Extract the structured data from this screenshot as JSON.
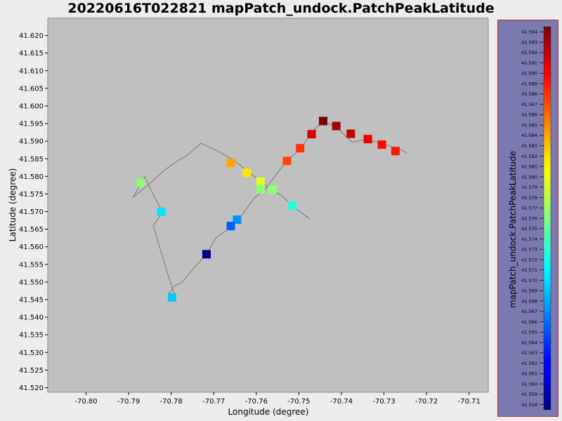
{
  "chart_data": {
    "type": "scatter",
    "title": "20220616T022821 mapPatch_undock.PatchPeakLatitude",
    "xlabel": "Longitude (degree)",
    "ylabel": "Latitude (degree)",
    "colorbar_label": "mapPatch_undock.PatchPeakLatitude",
    "colormap": "jet",
    "xlim": [
      -70.809,
      -70.7055
    ],
    "ylim": [
      41.5187,
      41.6249
    ],
    "x_ticks": [
      -70.8,
      -70.79,
      -70.78,
      -70.77,
      -70.76,
      -70.75,
      -70.74,
      -70.73,
      -70.72,
      -70.71
    ],
    "x_tick_labels": [
      "-70.80",
      "-70.79",
      "-70.78",
      "-70.77",
      "-70.76",
      "-70.75",
      "-70.74",
      "-70.73",
      "-70.72",
      "-70.71"
    ],
    "y_ticks": [
      41.52,
      41.525,
      41.53,
      41.535,
      41.54,
      41.545,
      41.55,
      41.555,
      41.56,
      41.565,
      41.57,
      41.575,
      41.58,
      41.585,
      41.59,
      41.595,
      41.6,
      41.605,
      41.61,
      41.615,
      41.62
    ],
    "y_tick_labels": [
      "41.520",
      "41.525",
      "41.530",
      "41.535",
      "41.540",
      "41.545",
      "41.550",
      "41.555",
      "41.560",
      "41.565",
      "41.570",
      "41.575",
      "41.580",
      "41.585",
      "41.590",
      "41.595",
      "41.600",
      "41.605",
      "41.610",
      "41.615",
      "41.620"
    ],
    "colorbar_ticks": [
      "41.594",
      "41.593",
      "41.592",
      "41.591",
      "41.590",
      "41.589",
      "41.588",
      "41.587",
      "41.586",
      "41.585",
      "41.584",
      "41.583",
      "41.582",
      "41.581",
      "41.580",
      "41.579",
      "41.578",
      "41.577",
      "41.576",
      "41.575",
      "41.574",
      "41.573",
      "41.572",
      "41.571",
      "41.570",
      "41.569",
      "41.568",
      "41.567",
      "41.566",
      "41.565",
      "41.564",
      "41.563",
      "41.562",
      "41.561",
      "41.560",
      "41.559",
      "41.558"
    ],
    "colorbar_range": [
      41.5575,
      41.5945
    ],
    "grid": false,
    "track": [
      [
        -70.7247,
        41.5866
      ],
      [
        -70.7255,
        41.5872
      ],
      [
        -70.729,
        41.5888
      ],
      [
        -70.734,
        41.5905
      ],
      [
        -70.7375,
        41.5897
      ],
      [
        -70.741,
        41.5938
      ],
      [
        -70.7444,
        41.5958
      ],
      [
        -70.747,
        41.5925
      ],
      [
        -70.7495,
        41.5879
      ],
      [
        -70.7528,
        41.5844
      ],
      [
        -70.7553,
        41.5805
      ],
      [
        -70.7578,
        41.5765
      ],
      [
        -70.7585,
        41.5758
      ],
      [
        -70.7605,
        41.5738
      ],
      [
        -70.7635,
        41.5688
      ],
      [
        -70.766,
        41.5655
      ],
      [
        -70.7695,
        41.5626
      ],
      [
        -70.7717,
        41.5579
      ],
      [
        -70.7745,
        41.5542
      ],
      [
        -70.7775,
        41.5498
      ],
      [
        -70.7792,
        41.5489
      ],
      [
        -70.7805,
        41.5468
      ],
      [
        -70.7792,
        41.5463
      ],
      [
        -70.7812,
        41.5538
      ],
      [
        -70.7842,
        41.566
      ],
      [
        -70.782,
        41.5698
      ],
      [
        -70.7845,
        41.5755
      ],
      [
        -70.7862,
        41.5799
      ],
      [
        -70.787,
        41.5782
      ],
      [
        -70.789,
        41.574
      ],
      [
        -70.785,
        41.578
      ],
      [
        -70.7815,
        41.5818
      ],
      [
        -70.779,
        41.584
      ],
      [
        -70.776,
        41.5862
      ],
      [
        -70.773,
        41.5894
      ],
      [
        -70.769,
        41.5872
      ],
      [
        -70.765,
        41.5844
      ],
      [
        -70.762,
        41.5813
      ],
      [
        -70.759,
        41.5787
      ],
      [
        -70.7565,
        41.5762
      ],
      [
        -70.754,
        41.5745
      ],
      [
        -70.7515,
        41.5716
      ],
      [
        -70.749,
        41.5693
      ],
      [
        -70.7475,
        41.568
      ],
      [
        -70.7482,
        41.5685
      ]
    ],
    "points": [
      {
        "x": -70.7443,
        "y": 41.5957,
        "value": 41.5945
      },
      {
        "x": -70.7412,
        "y": 41.5943,
        "value": 41.593
      },
      {
        "x": -70.7378,
        "y": 41.5921,
        "value": 41.592
      },
      {
        "x": -70.747,
        "y": 41.592,
        "value": 41.5915
      },
      {
        "x": -70.7338,
        "y": 41.5906,
        "value": 41.5905
      },
      {
        "x": -70.7305,
        "y": 41.589,
        "value": 41.5895
      },
      {
        "x": -70.7273,
        "y": 41.5872,
        "value": 41.589
      },
      {
        "x": -70.7497,
        "y": 41.588,
        "value": 41.588
      },
      {
        "x": -70.7528,
        "y": 41.5844,
        "value": 41.5873
      },
      {
        "x": -70.766,
        "y": 41.5838,
        "value": 41.584
      },
      {
        "x": -70.7622,
        "y": 41.581,
        "value": 41.5815
      },
      {
        "x": -70.759,
        "y": 41.5785,
        "value": 41.5795
      },
      {
        "x": -70.759,
        "y": 41.5763,
        "value": 41.5765
      },
      {
        "x": -70.7562,
        "y": 41.5763,
        "value": 41.5765
      },
      {
        "x": -70.7872,
        "y": 41.5782,
        "value": 41.5765
      },
      {
        "x": -70.7515,
        "y": 41.5717,
        "value": 41.5725
      },
      {
        "x": -70.7823,
        "y": 41.5699,
        "value": 41.5705
      },
      {
        "x": -70.7798,
        "y": 41.5456,
        "value": 41.5695
      },
      {
        "x": -70.7645,
        "y": 41.5677,
        "value": 41.5675
      },
      {
        "x": -70.766,
        "y": 41.5659,
        "value": 41.5655
      },
      {
        "x": -70.7717,
        "y": 41.5579,
        "value": 41.5578
      }
    ]
  }
}
